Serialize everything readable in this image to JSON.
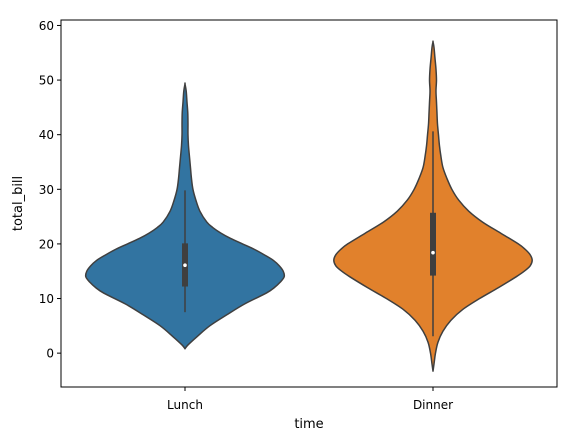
{
  "chart_data": {
    "type": "violin",
    "xlabel": "time",
    "ylabel": "total_bill",
    "ylim": [
      -6.2,
      61
    ],
    "yticks": [
      0,
      10,
      20,
      30,
      40,
      50,
      60
    ],
    "categories": [
      "Lunch",
      "Dinner"
    ],
    "grid": false,
    "violins": [
      {
        "category": "Lunch",
        "color": "#3274a1",
        "profile": [
          [
            0.8,
            0.0
          ],
          [
            1.5,
            0.03
          ],
          [
            3,
            0.12
          ],
          [
            5,
            0.25
          ],
          [
            7,
            0.42
          ],
          [
            9,
            0.6
          ],
          [
            11,
            0.82
          ],
          [
            12,
            0.9
          ],
          [
            13,
            0.96
          ],
          [
            14,
            1.0
          ],
          [
            15,
            0.99
          ],
          [
            16,
            0.95
          ],
          [
            17,
            0.89
          ],
          [
            18,
            0.8
          ],
          [
            19,
            0.7
          ],
          [
            20,
            0.58
          ],
          [
            21,
            0.46
          ],
          [
            22,
            0.36
          ],
          [
            23,
            0.28
          ],
          [
            24,
            0.22
          ],
          [
            26,
            0.15
          ],
          [
            28,
            0.11
          ],
          [
            30,
            0.08
          ],
          [
            32,
            0.065
          ],
          [
            34,
            0.055
          ],
          [
            36,
            0.045
          ],
          [
            38,
            0.035
          ],
          [
            40,
            0.03
          ],
          [
            42,
            0.03
          ],
          [
            44,
            0.028
          ],
          [
            46,
            0.02
          ],
          [
            48,
            0.012
          ],
          [
            49.3,
            0.0
          ]
        ],
        "box_q1": 12.2,
        "box_q3": 20.1,
        "whisker_low": 7.5,
        "whisker_high": 29.8,
        "median": 16.1
      },
      {
        "category": "Dinner",
        "color": "#e1812c",
        "profile": [
          [
            -3.3,
            0.0
          ],
          [
            -2,
            0.01
          ],
          [
            0,
            0.025
          ],
          [
            2,
            0.05
          ],
          [
            4,
            0.1
          ],
          [
            6,
            0.18
          ],
          [
            8,
            0.3
          ],
          [
            10,
            0.47
          ],
          [
            12,
            0.66
          ],
          [
            14,
            0.84
          ],
          [
            15,
            0.92
          ],
          [
            16,
            0.98
          ],
          [
            17,
            1.0
          ],
          [
            18,
            0.98
          ],
          [
            19,
            0.93
          ],
          [
            20,
            0.86
          ],
          [
            22,
            0.68
          ],
          [
            24,
            0.5
          ],
          [
            26,
            0.36
          ],
          [
            28,
            0.26
          ],
          [
            30,
            0.19
          ],
          [
            32,
            0.14
          ],
          [
            34,
            0.1
          ],
          [
            36,
            0.08
          ],
          [
            38,
            0.065
          ],
          [
            40,
            0.055
          ],
          [
            42,
            0.045
          ],
          [
            44,
            0.04
          ],
          [
            46,
            0.035
          ],
          [
            48,
            0.03
          ],
          [
            50,
            0.035
          ],
          [
            52,
            0.03
          ],
          [
            54,
            0.02
          ],
          [
            56,
            0.01
          ],
          [
            57,
            0.0
          ]
        ],
        "box_q1": 14.2,
        "box_q3": 25.7,
        "whisker_low": 3.1,
        "whisker_high": 40.6,
        "median": 18.4
      }
    ]
  }
}
